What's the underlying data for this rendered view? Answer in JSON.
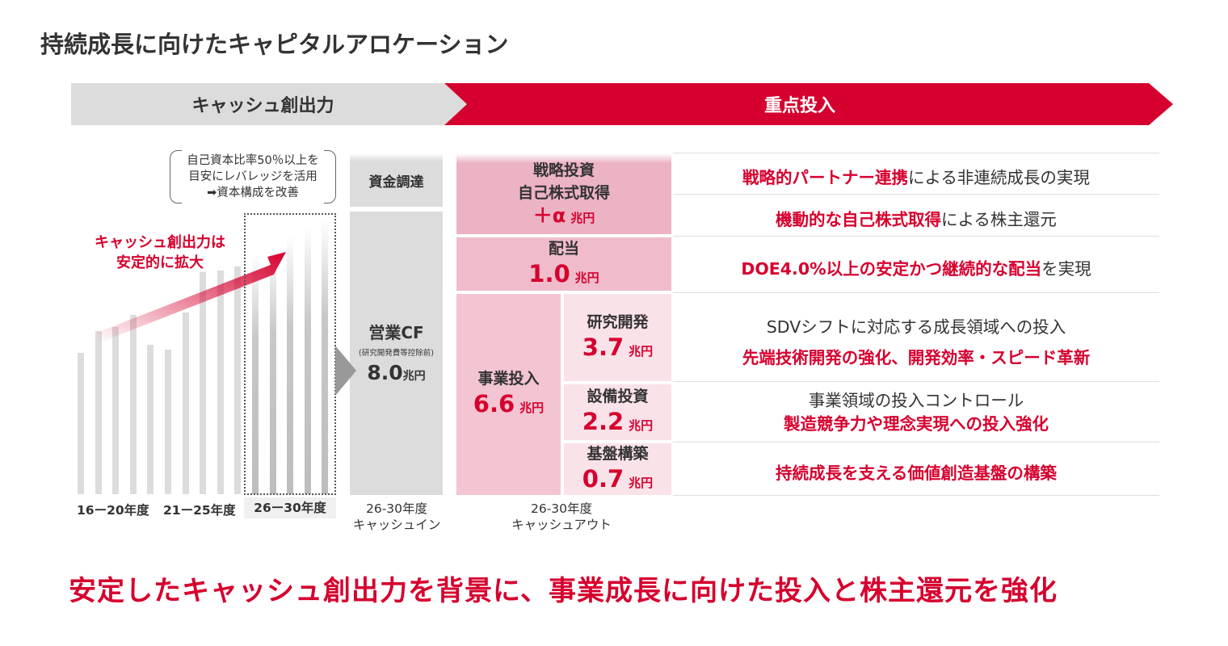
{
  "title": "持続成長に向けたキャピタルアロケーション",
  "banner": {
    "left": "キャッシュ創出力",
    "right": "重点投入"
  },
  "colors": {
    "accent": "#d6002e",
    "grey": "#dcdcdc",
    "pink_dark": "#ecb3c4",
    "pink_mid": "#f3c4d2",
    "pink_light": "#fae2e9"
  },
  "note": [
    "自己資本比率50％以上を",
    "目安にレバレッジを活用",
    "➡資本構成を改善"
  ],
  "trend_label": [
    "キャッシュ創出力は",
    "安定的に拡大"
  ],
  "periods": [
    "16ー20年度",
    "21ー25年度",
    "26ー30年度"
  ],
  "cash_in": {
    "funding": "資金調達",
    "op_cf": "営業CF",
    "op_cf_note": "(研究開発費等控除前)",
    "op_cf_value": "8.0",
    "unit": "兆円",
    "caption": [
      "26-30年度",
      "キャッシュイン"
    ]
  },
  "cash_out": {
    "strategic": {
      "label1": "戦略投資",
      "label2": "自己株式取得",
      "value": "＋α",
      "unit": "兆円"
    },
    "dividend": {
      "label": "配当",
      "value": "1.0",
      "unit": "兆円"
    },
    "business": {
      "label": "事業投入",
      "value": "6.6",
      "unit": "兆円"
    },
    "rd": {
      "label": "研究開発",
      "value": "3.7",
      "unit": "兆円"
    },
    "capex": {
      "label": "設備投資",
      "value": "2.2",
      "unit": "兆円"
    },
    "foundation": {
      "label": "基盤構築",
      "value": "0.7",
      "unit": "兆円"
    },
    "caption": [
      "26-30年度",
      "キャッシュアウト"
    ]
  },
  "descriptions": [
    {
      "em": "戦略的パートナー連携",
      "rest": "による非連続成長の実現"
    },
    {
      "em": "機動的な自己株式取得",
      "rest": "による株主還元"
    },
    {
      "em": "DOE4.0%以上の安定かつ継続的な配当",
      "rest": "を実現"
    },
    {
      "plain": "SDVシフトに対応する成長領域への投入",
      "em": "先端技術開発の強化、開発効率・スピード革新"
    },
    {
      "plain": "事業領域の投入コントロール",
      "em": "製造競争力や理念実現への投入強化"
    },
    {
      "em": "持続成長を支える価値創造基盤の構築"
    }
  ],
  "slogan": "安定したキャッシュ創出力を背景に、事業成長に向けた投入と株主還元を強化"
}
